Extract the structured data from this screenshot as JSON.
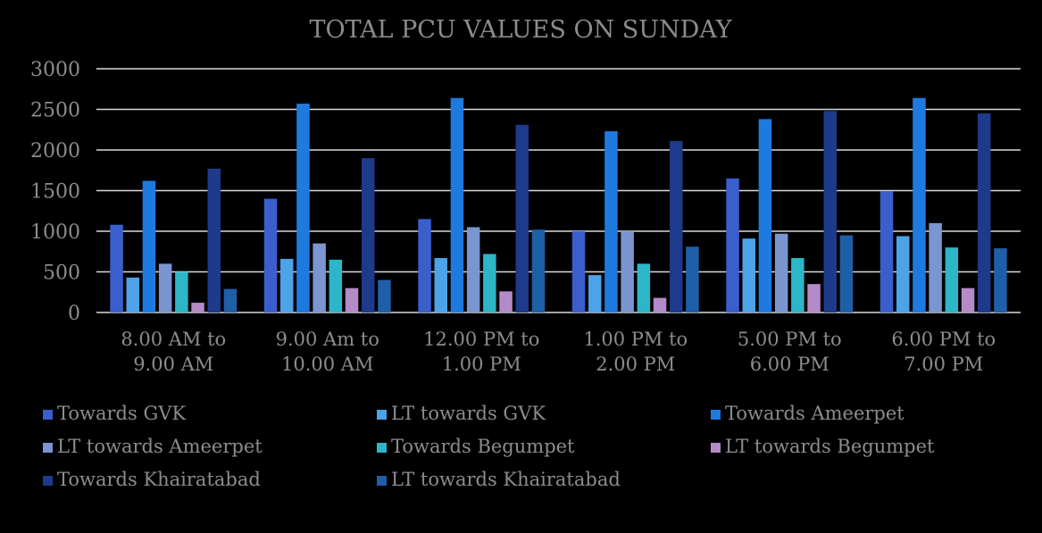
{
  "chart_data": {
    "type": "bar",
    "title": "TOTAL PCU VALUES ON SUNDAY",
    "xlabel": "",
    "ylabel": "",
    "ylim": [
      0,
      3000
    ],
    "yticks": [
      "0",
      "500",
      "1000",
      "1500",
      "2000",
      "2500",
      "3000"
    ],
    "ytick_values": [
      0,
      500,
      1000,
      1500,
      2000,
      2500,
      3000
    ],
    "grid": true,
    "legend_position": "bottom",
    "categories": [
      [
        "8.00 AM to",
        "9.00 AM"
      ],
      [
        "9.00 Am to",
        "10.00 AM"
      ],
      [
        "12.00 PM to",
        "1.00 PM"
      ],
      [
        "1.00 PM to",
        "2.00 PM"
      ],
      [
        "5.00 PM to",
        "6.00 PM"
      ],
      [
        "6.00 PM to",
        "7.00 PM"
      ]
    ],
    "series": [
      {
        "name": "Towards GVK",
        "color": "#3a5fcd",
        "values": [
          1080,
          1400,
          1150,
          1000,
          1650,
          1490
        ]
      },
      {
        "name": "LT towards GVK",
        "color": "#4ca3e8",
        "values": [
          430,
          660,
          670,
          460,
          910,
          940
        ]
      },
      {
        "name": "Towards Ameerpet",
        "color": "#1f7ae0",
        "values": [
          1620,
          2570,
          2640,
          2230,
          2380,
          2640
        ]
      },
      {
        "name": "LT towards Ameerpet",
        "color": "#7a95d0",
        "values": [
          600,
          850,
          1050,
          1000,
          970,
          1100
        ]
      },
      {
        "name": "Towards Begumpet",
        "color": "#2db5c8",
        "values": [
          500,
          650,
          720,
          600,
          670,
          800
        ]
      },
      {
        "name": "LT towards Begumpet",
        "color": "#b48ac8",
        "values": [
          120,
          300,
          260,
          180,
          350,
          300
        ]
      },
      {
        "name": "Towards Khairatabad",
        "color": "#1e3a8a",
        "values": [
          1770,
          1900,
          2310,
          2110,
          2480,
          2450
        ]
      },
      {
        "name": "LT towards Khairatabad",
        "color": "#1f5fa8",
        "values": [
          290,
          400,
          1020,
          810,
          950,
          790
        ]
      }
    ]
  }
}
